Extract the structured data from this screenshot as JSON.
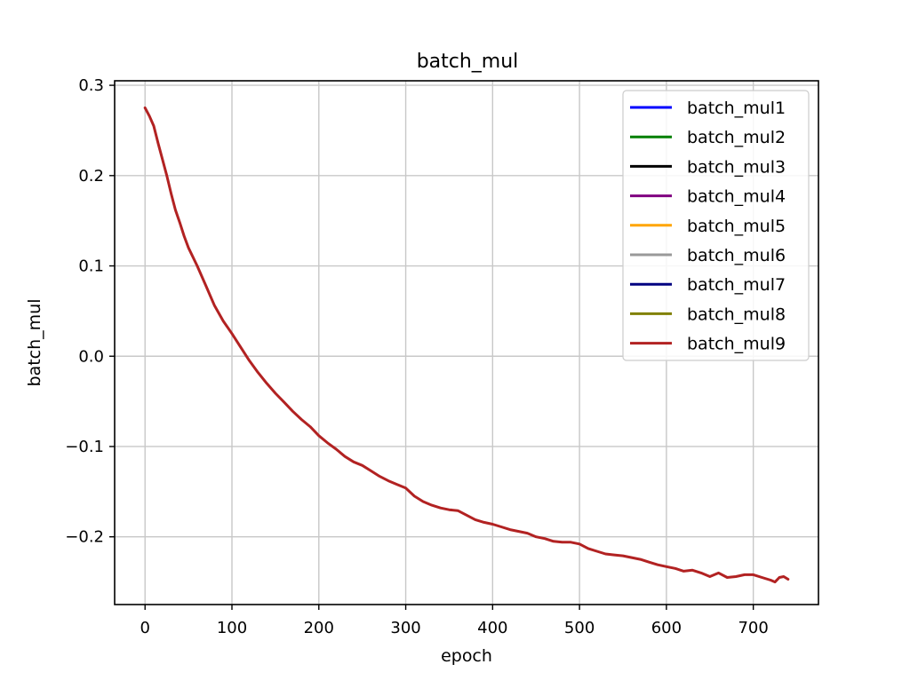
{
  "chart_data": {
    "type": "line",
    "title": "batch_mul",
    "xlabel": "epoch",
    "ylabel": "batch_mul",
    "xlim": [
      -35,
      775
    ],
    "ylim": [
      -0.275,
      0.305
    ],
    "xticks": [
      0,
      100,
      200,
      300,
      400,
      500,
      600,
      700
    ],
    "yticks": [
      0.3,
      0.2,
      0.1,
      0.0,
      -0.1,
      -0.2
    ],
    "xtick_labels": [
      "0",
      "100",
      "200",
      "300",
      "400",
      "500",
      "600",
      "700"
    ],
    "ytick_labels": [
      "0.3",
      "0.2",
      "0.1",
      "0.0",
      "−0.1",
      "−0.2"
    ],
    "grid": true,
    "legend_position": "top-right",
    "series": [
      {
        "name": "batch_mul1",
        "color": "#0000ff",
        "x": [],
        "y": []
      },
      {
        "name": "batch_mul2",
        "color": "#008000",
        "x": [],
        "y": []
      },
      {
        "name": "batch_mul3",
        "color": "#000000",
        "x": [],
        "y": []
      },
      {
        "name": "batch_mul4",
        "color": "#800080",
        "x": [],
        "y": []
      },
      {
        "name": "batch_mul5",
        "color": "#ffa500",
        "x": [],
        "y": []
      },
      {
        "name": "batch_mul6",
        "color": "#999999",
        "x": [],
        "y": []
      },
      {
        "name": "batch_mul7",
        "color": "#000080",
        "x": [],
        "y": []
      },
      {
        "name": "batch_mul8",
        "color": "#808000",
        "x": [],
        "y": []
      },
      {
        "name": "batch_mul9",
        "color": "#b22222",
        "x": [
          0,
          5,
          10,
          15,
          20,
          25,
          30,
          35,
          40,
          45,
          50,
          60,
          70,
          80,
          90,
          100,
          110,
          120,
          130,
          140,
          150,
          160,
          170,
          180,
          190,
          200,
          210,
          220,
          230,
          240,
          250,
          260,
          270,
          280,
          290,
          300,
          310,
          320,
          330,
          340,
          350,
          360,
          370,
          380,
          390,
          400,
          410,
          420,
          430,
          440,
          450,
          460,
          470,
          480,
          490,
          500,
          510,
          520,
          530,
          540,
          550,
          560,
          570,
          580,
          590,
          600,
          610,
          620,
          630,
          640,
          650,
          660,
          670,
          680,
          690,
          700,
          710,
          720,
          725,
          730,
          735,
          740
        ],
        "y": [
          0.275,
          0.266,
          0.255,
          0.236,
          0.218,
          0.2,
          0.18,
          0.162,
          0.148,
          0.133,
          0.12,
          0.1,
          0.078,
          0.056,
          0.039,
          0.025,
          0.01,
          -0.005,
          -0.018,
          -0.03,
          -0.041,
          -0.051,
          -0.061,
          -0.07,
          -0.078,
          -0.088,
          -0.096,
          -0.103,
          -0.111,
          -0.117,
          -0.121,
          -0.127,
          -0.133,
          -0.138,
          -0.142,
          -0.146,
          -0.155,
          -0.161,
          -0.165,
          -0.168,
          -0.17,
          -0.171,
          -0.176,
          -0.181,
          -0.184,
          -0.186,
          -0.189,
          -0.192,
          -0.194,
          -0.196,
          -0.2,
          -0.202,
          -0.205,
          -0.206,
          -0.206,
          -0.208,
          -0.213,
          -0.216,
          -0.219,
          -0.22,
          -0.221,
          -0.223,
          -0.225,
          -0.228,
          -0.231,
          -0.233,
          -0.235,
          -0.238,
          -0.237,
          -0.24,
          -0.244,
          -0.24,
          -0.245,
          -0.244,
          -0.242,
          -0.242,
          -0.245,
          -0.248,
          -0.25,
          -0.245,
          -0.244,
          -0.247
        ]
      }
    ]
  }
}
